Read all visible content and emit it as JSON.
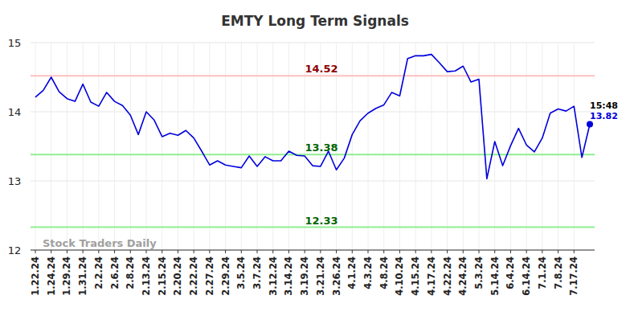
{
  "chart_data": {
    "type": "line",
    "title": "EMTY Long Term Signals",
    "categories": [
      "1.22.24",
      null,
      "1.24.24",
      null,
      "1.29.24",
      null,
      "1.31.24",
      null,
      "2.2.24",
      null,
      "2.6.24",
      null,
      "2.8.24",
      null,
      "2.13.24",
      null,
      "2.15.24",
      null,
      "2.20.24",
      null,
      "2.22.24",
      null,
      "2.27.24",
      null,
      "2.29.24",
      null,
      "3.5.24",
      null,
      "3.7.24",
      null,
      "3.12.24",
      null,
      "3.14.24",
      null,
      "3.19.24",
      null,
      "3.21.24",
      null,
      "3.26.24",
      null,
      "4.1.24",
      null,
      "4.3.24",
      null,
      "4.8.24",
      null,
      "4.10.24",
      null,
      "4.15.24",
      null,
      "4.17.24",
      null,
      "4.22.24",
      null,
      "4.24.24",
      null,
      "5.3.24",
      null,
      "5.14.24",
      null,
      "6.4.24",
      null,
      "6.14.24",
      null,
      "7.1.24",
      null,
      "7.8.24",
      null,
      "7.17.24",
      null,
      null
    ],
    "values": [
      14.21,
      14.31,
      14.5,
      14.29,
      14.19,
      14.15,
      14.4,
      14.14,
      14.08,
      14.28,
      14.15,
      14.09,
      13.95,
      13.67,
      14.0,
      13.88,
      13.64,
      13.69,
      13.66,
      13.73,
      13.62,
      13.43,
      13.23,
      13.29,
      13.23,
      13.21,
      13.19,
      13.36,
      13.21,
      13.35,
      13.29,
      13.29,
      13.43,
      13.37,
      13.36,
      13.22,
      13.21,
      13.43,
      13.16,
      13.33,
      13.67,
      13.87,
      13.98,
      14.05,
      14.1,
      14.28,
      14.23,
      14.77,
      14.81,
      14.81,
      14.83,
      14.71,
      14.58,
      14.59,
      14.66,
      14.43,
      14.47,
      13.03,
      13.57,
      13.22,
      13.51,
      13.76,
      13.52,
      13.42,
      13.62,
      13.98,
      14.04,
      14.01,
      14.08,
      13.34,
      13.82
    ],
    "color": "#0000dd",
    "ylim": [
      12,
      15
    ],
    "yticks": [
      12,
      13,
      14,
      15
    ],
    "grid": true,
    "hlines": [
      {
        "value": 14.52,
        "color": "#ffc0c0",
        "label_color": "#8b0000"
      },
      {
        "value": 13.38,
        "color": "#90ee90",
        "label_color": "#006400"
      },
      {
        "value": 12.33,
        "color": "#90ee90",
        "label_color": "#006400"
      }
    ],
    "annotations": [
      {
        "text": "Stock Traders Daily"
      },
      {
        "text": "15:48"
      }
    ]
  }
}
